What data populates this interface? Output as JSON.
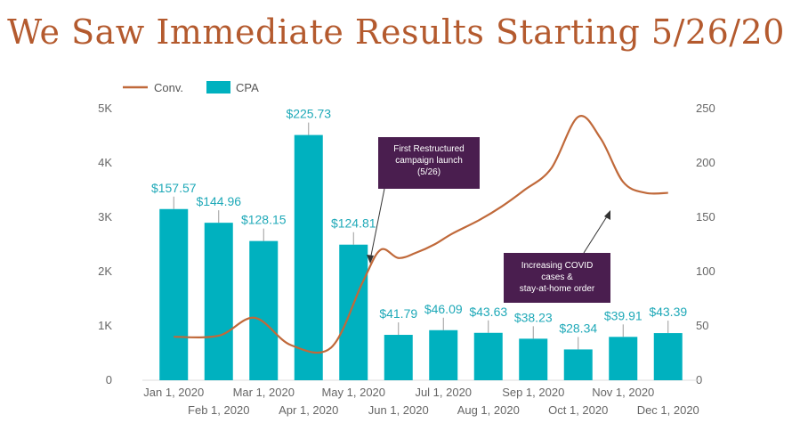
{
  "title": "We Saw Immediate Results Starting 5/26/20",
  "colors": {
    "title": "#b45a2e",
    "conv_line": "#c0693a",
    "cpa_bar": "#00b1bf",
    "label": "#1fa9b8",
    "note_bg": "#4a1e4f",
    "axis_text": "#666666"
  },
  "chart_data": {
    "type": "bar",
    "legend": [
      "Conv.",
      "CPA"
    ],
    "legend_position": "top-left",
    "categories": [
      "Jan 1, 2020",
      "Feb 1, 2020",
      "Mar 1, 2020",
      "Apr 1, 2020",
      "May 1, 2020",
      "Jun 1, 2020",
      "Jul 1, 2020",
      "Aug 1, 2020",
      "Sep 1, 2020",
      "Oct 1, 2020",
      "Nov 1, 2020",
      "Dec 1, 2020"
    ],
    "series": [
      {
        "name": "CPA",
        "type": "bar",
        "axis": "right",
        "values": [
          157.57,
          144.96,
          128.15,
          225.73,
          124.81,
          41.79,
          46.09,
          43.63,
          38.23,
          28.34,
          39.91,
          43.39
        ],
        "labels": [
          "$157.57",
          "$144.96",
          "$128.15",
          "$225.73",
          "$124.81",
          "$41.79",
          "$46.09",
          "$43.63",
          "$38.23",
          "$28.34",
          "$39.91",
          "$43.39"
        ]
      },
      {
        "name": "Conv.",
        "type": "line",
        "axis": "left",
        "x": [
          0,
          1,
          1.8,
          2.6,
          3.5,
          4.2,
          4.6,
          5,
          5.4,
          5.8,
          6.2,
          6.8,
          7.3,
          7.8,
          8.4,
          9,
          9.5,
          10,
          10.5,
          11
        ],
        "values": [
          800,
          820,
          1150,
          650,
          600,
          1800,
          2400,
          2250,
          2350,
          2500,
          2700,
          2950,
          3200,
          3500,
          3900,
          4850,
          4450,
          3650,
          3450,
          3450
        ]
      }
    ],
    "y_left": {
      "min": 0,
      "max": 5000,
      "ticks": [
        "0",
        "1K",
        "2K",
        "3K",
        "4K",
        "5K"
      ]
    },
    "y_right": {
      "min": 0,
      "max": 250,
      "ticks": [
        "0",
        "50",
        "100",
        "150",
        "200",
        "250"
      ]
    },
    "grid": false,
    "annotations": [
      {
        "lines": [
          "First Restructured",
          "campaign launch",
          "(5/26)"
        ]
      },
      {
        "lines": [
          "Increasing COVID",
          "cases &",
          "stay-at-home order"
        ]
      }
    ]
  }
}
